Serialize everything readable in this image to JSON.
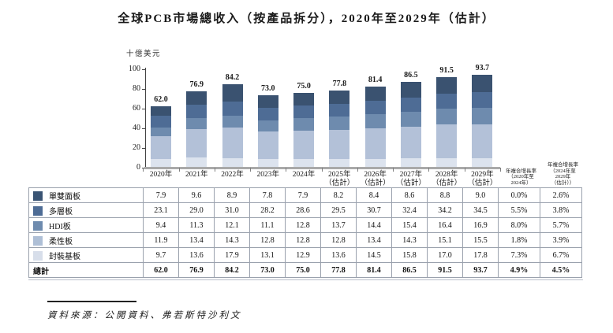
{
  "page": {
    "title": "全球PCB市場總收入（按產品拆分），2020年至2029年（估計）",
    "source_note": "資料來源：公開資料、弗若斯特沙利文"
  },
  "chart_data": {
    "type": "bar",
    "stacked": true,
    "title": "全球PCB市場總收入（按產品拆分），2020年至2029年（估計）",
    "unit_label": "十億美元",
    "ylim": [
      0,
      100
    ],
    "yticks": [
      0,
      20,
      40,
      60,
      80,
      100
    ],
    "grid": false,
    "legend_position": "table-left-column",
    "x_labels": [
      [
        "2020年"
      ],
      [
        "2021年"
      ],
      [
        "2022年"
      ],
      [
        "2023年"
      ],
      [
        "2024年"
      ],
      [
        "2025年",
        "（估計）"
      ],
      [
        "2026年",
        "（估計）"
      ],
      [
        "2027年",
        "（估計）"
      ],
      [
        "2028年",
        "（估計）"
      ],
      [
        "2029年",
        "（估計）"
      ]
    ],
    "totals": [
      62.0,
      76.9,
      84.2,
      73.0,
      75.0,
      77.8,
      81.4,
      86.5,
      91.5,
      93.7
    ],
    "series": [
      {
        "name": "單雙面板",
        "legend_color": "#3a5474",
        "bar_color": "#dce3ee",
        "values": [
          7.9,
          9.6,
          8.9,
          7.8,
          7.9,
          8.2,
          8.4,
          8.6,
          8.8,
          9.0
        ],
        "cagr_2020_2024": "0.0%",
        "cagr_2024_2029": "2.6%"
      },
      {
        "name": "多層板",
        "legend_color": "#4e6c95",
        "bar_color": "#b3c1d8",
        "values": [
          23.1,
          29.0,
          31.0,
          28.2,
          28.6,
          29.5,
          30.7,
          32.4,
          34.2,
          34.5
        ],
        "cagr_2020_2024": "5.5%",
        "cagr_2024_2029": "3.8%"
      },
      {
        "name": "HDI板",
        "legend_color": "#6e8bae",
        "bar_color": "#6e8bae",
        "values": [
          9.4,
          11.3,
          12.1,
          11.1,
          12.8,
          13.7,
          14.4,
          15.4,
          16.4,
          16.9
        ],
        "cagr_2020_2024": "8.0%",
        "cagr_2024_2029": "5.7%"
      },
      {
        "name": "柔性板",
        "legend_color": "#aebfd6",
        "bar_color": "#4e6c95",
        "values": [
          11.9,
          13.4,
          14.3,
          12.8,
          12.8,
          12.8,
          13.4,
          14.3,
          15.1,
          15.5
        ],
        "cagr_2020_2024": "1.8%",
        "cagr_2024_2029": "3.9%"
      },
      {
        "name": "封裝基板",
        "legend_color": "#d7deea",
        "bar_color": "#3a5270",
        "values": [
          9.7,
          13.6,
          17.9,
          13.1,
          12.9,
          13.6,
          14.5,
          15.8,
          17.0,
          17.8
        ],
        "cagr_2020_2024": "7.3%",
        "cagr_2024_2029": "6.7%"
      }
    ],
    "total_row": {
      "label": "總計",
      "cagr_2020_2024": "4.9%",
      "cagr_2024_2029": "4.5%"
    },
    "cagr_headers": [
      [
        "年複合增長率",
        "（2020年至",
        "2024年）"
      ],
      [
        "年複合增長率",
        "（2024年至",
        "2029年",
        "（估計））"
      ]
    ]
  }
}
